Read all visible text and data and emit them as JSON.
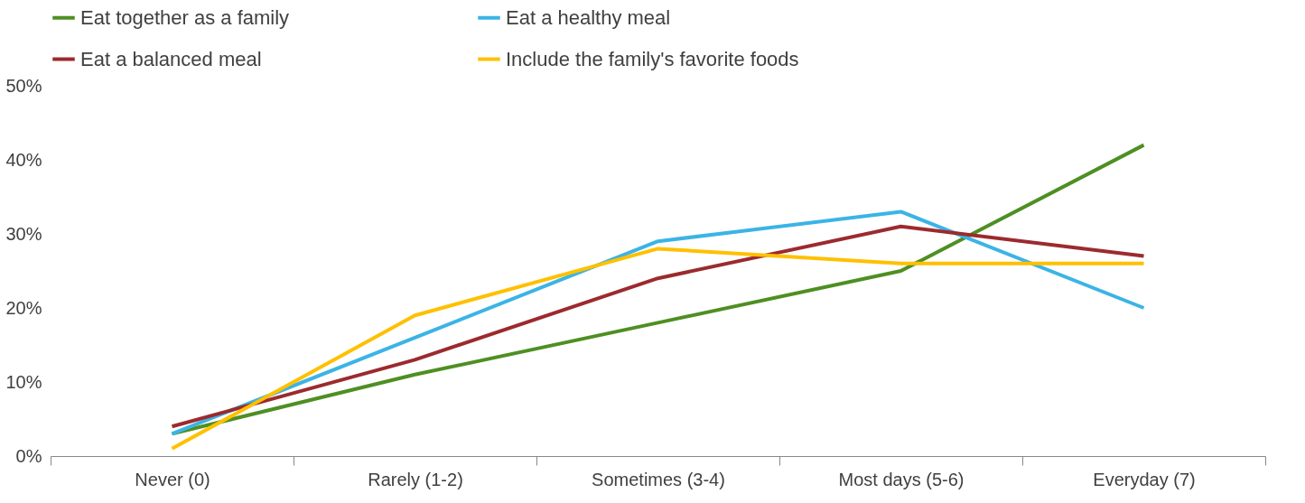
{
  "chart_data": {
    "type": "line",
    "categories": [
      "Never (0)",
      "Rarely (1-2)",
      "Sometimes (3-4)",
      "Most days (5-6)",
      "Everyday (7)"
    ],
    "series": [
      {
        "name": "Eat together as a family",
        "color": "#4e8f22",
        "values": [
          3,
          11,
          18,
          25,
          42
        ]
      },
      {
        "name": "Eat a healthy meal",
        "color": "#3bb4e5",
        "values": [
          3,
          16,
          29,
          33,
          20
        ]
      },
      {
        "name": "Eat a balanced meal",
        "color": "#9c2a2e",
        "values": [
          4,
          13,
          24,
          31,
          27
        ]
      },
      {
        "name": "Include the family's favorite foods",
        "color": "#ffc000",
        "values": [
          1,
          19,
          28,
          26,
          26
        ]
      }
    ],
    "ylim": [
      0,
      50
    ],
    "yticks": [
      {
        "value": 0,
        "label": "0%"
      },
      {
        "value": 10,
        "label": "10%"
      },
      {
        "value": 20,
        "label": "20%"
      },
      {
        "value": 30,
        "label": "30%"
      },
      {
        "value": 40,
        "label": "40%"
      },
      {
        "value": 50,
        "label": "50%"
      }
    ],
    "grid": false,
    "legend": "top",
    "marker": "none",
    "line_style": "solid"
  }
}
